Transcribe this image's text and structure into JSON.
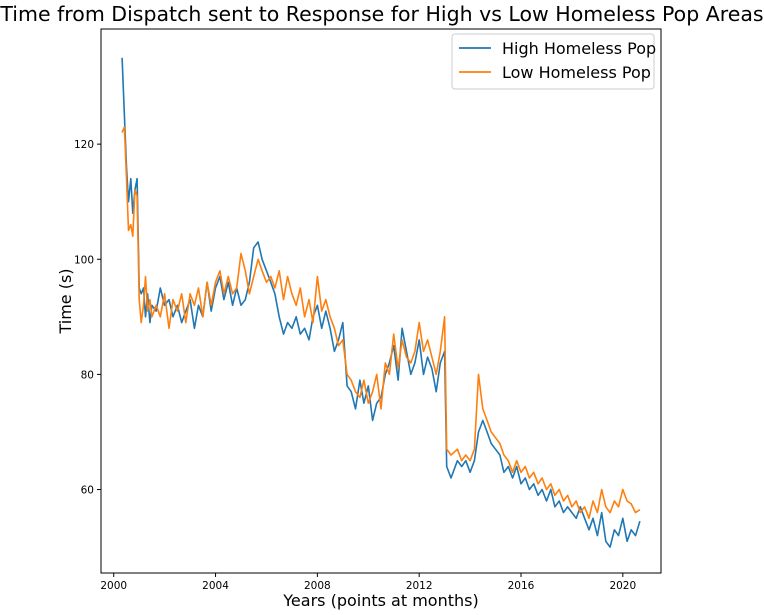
{
  "chart_data": {
    "type": "line",
    "title": "Time from Dispatch sent to Response for High vs Low Homeless Pop Areas",
    "xlabel": "Years (points at months)",
    "ylabel": "Time (s)",
    "xlim": [
      1999.5,
      2021.5
    ],
    "ylim": [
      45.5,
      140.0
    ],
    "x_ticks": [
      {
        "value": 2000,
        "label": "2000"
      },
      {
        "value": 2004,
        "label": "2004"
      },
      {
        "value": 2008,
        "label": "2008"
      },
      {
        "value": 2012,
        "label": "2012"
      },
      {
        "value": 2016,
        "label": "2016"
      },
      {
        "value": 2020,
        "label": "2020"
      }
    ],
    "y_ticks": [
      {
        "value": 60,
        "label": "60"
      },
      {
        "value": 80,
        "label": "80"
      },
      {
        "value": 100,
        "label": "100"
      },
      {
        "value": 120,
        "label": "120"
      }
    ],
    "grid": false,
    "legend_position": "top-right",
    "series": [
      {
        "name": "High Homeless Pop",
        "color": "#1f77b4",
        "points": [
          [
            2000.33,
            135
          ],
          [
            2000.42,
            125
          ],
          [
            2000.5,
            116
          ],
          [
            2000.58,
            110
          ],
          [
            2000.67,
            114
          ],
          [
            2000.75,
            108
          ],
          [
            2000.83,
            112
          ],
          [
            2000.92,
            114
          ],
          [
            2001.0,
            95
          ],
          [
            2001.08,
            94
          ],
          [
            2001.17,
            95
          ],
          [
            2001.25,
            90
          ],
          [
            2001.33,
            94
          ],
          [
            2001.42,
            89
          ],
          [
            2001.5,
            92
          ],
          [
            2001.67,
            91
          ],
          [
            2001.83,
            95
          ],
          [
            2002.0,
            92
          ],
          [
            2002.17,
            93
          ],
          [
            2002.33,
            90
          ],
          [
            2002.5,
            92
          ],
          [
            2002.67,
            89
          ],
          [
            2002.83,
            91
          ],
          [
            2003.0,
            93
          ],
          [
            2003.17,
            88
          ],
          [
            2003.33,
            92
          ],
          [
            2003.5,
            90
          ],
          [
            2003.67,
            96
          ],
          [
            2003.83,
            91
          ],
          [
            2004.0,
            95
          ],
          [
            2004.17,
            97
          ],
          [
            2004.33,
            93
          ],
          [
            2004.5,
            96
          ],
          [
            2004.67,
            92
          ],
          [
            2004.83,
            95
          ],
          [
            2005.0,
            92
          ],
          [
            2005.17,
            93
          ],
          [
            2005.33,
            96
          ],
          [
            2005.5,
            102
          ],
          [
            2005.67,
            103
          ],
          [
            2005.83,
            100
          ],
          [
            2006.0,
            98
          ],
          [
            2006.17,
            96
          ],
          [
            2006.33,
            94
          ],
          [
            2006.5,
            90
          ],
          [
            2006.67,
            87
          ],
          [
            2006.83,
            89
          ],
          [
            2007.0,
            88
          ],
          [
            2007.17,
            90
          ],
          [
            2007.33,
            87
          ],
          [
            2007.5,
            88
          ],
          [
            2007.67,
            86
          ],
          [
            2007.83,
            90
          ],
          [
            2008.0,
            92
          ],
          [
            2008.17,
            88
          ],
          [
            2008.33,
            91
          ],
          [
            2008.5,
            88
          ],
          [
            2008.67,
            84
          ],
          [
            2008.83,
            86
          ],
          [
            2009.0,
            89
          ],
          [
            2009.17,
            78
          ],
          [
            2009.33,
            77
          ],
          [
            2009.5,
            74
          ],
          [
            2009.67,
            79
          ],
          [
            2009.83,
            75
          ],
          [
            2010.0,
            78
          ],
          [
            2010.17,
            72
          ],
          [
            2010.33,
            75
          ],
          [
            2010.5,
            76
          ],
          [
            2010.67,
            80
          ],
          [
            2010.83,
            82
          ],
          [
            2011.0,
            85
          ],
          [
            2011.17,
            79
          ],
          [
            2011.33,
            88
          ],
          [
            2011.5,
            84
          ],
          [
            2011.67,
            80
          ],
          [
            2011.83,
            82
          ],
          [
            2012.0,
            86
          ],
          [
            2012.17,
            80
          ],
          [
            2012.33,
            83
          ],
          [
            2012.5,
            81
          ],
          [
            2012.67,
            77
          ],
          [
            2012.83,
            82
          ],
          [
            2013.0,
            84
          ],
          [
            2013.08,
            64
          ],
          [
            2013.25,
            62
          ],
          [
            2013.5,
            65
          ],
          [
            2013.67,
            64
          ],
          [
            2013.83,
            65
          ],
          [
            2014.0,
            63
          ],
          [
            2014.17,
            65
          ],
          [
            2014.33,
            70
          ],
          [
            2014.5,
            72
          ],
          [
            2014.67,
            70
          ],
          [
            2014.83,
            68
          ],
          [
            2015.0,
            67
          ],
          [
            2015.17,
            66
          ],
          [
            2015.33,
            63
          ],
          [
            2015.5,
            64
          ],
          [
            2015.67,
            62
          ],
          [
            2015.83,
            64
          ],
          [
            2016.0,
            61
          ],
          [
            2016.17,
            62
          ],
          [
            2016.33,
            60
          ],
          [
            2016.5,
            61
          ],
          [
            2016.67,
            59
          ],
          [
            2016.83,
            60
          ],
          [
            2017.0,
            58
          ],
          [
            2017.17,
            60
          ],
          [
            2017.33,
            57
          ],
          [
            2017.5,
            58
          ],
          [
            2017.67,
            56
          ],
          [
            2017.83,
            57
          ],
          [
            2018.0,
            56
          ],
          [
            2018.17,
            55
          ],
          [
            2018.33,
            57
          ],
          [
            2018.5,
            55
          ],
          [
            2018.67,
            53
          ],
          [
            2018.83,
            55
          ],
          [
            2019.0,
            52
          ],
          [
            2019.17,
            56
          ],
          [
            2019.33,
            51
          ],
          [
            2019.5,
            50
          ],
          [
            2019.67,
            53
          ],
          [
            2019.83,
            52
          ],
          [
            2020.0,
            55
          ],
          [
            2020.17,
            51
          ],
          [
            2020.33,
            53
          ],
          [
            2020.5,
            52
          ],
          [
            2020.67,
            54.5
          ]
        ]
      },
      {
        "name": "Low Homeless Pop",
        "color": "#ff7f0e",
        "points": [
          [
            2000.33,
            122
          ],
          [
            2000.42,
            123
          ],
          [
            2000.5,
            114
          ],
          [
            2000.58,
            105
          ],
          [
            2000.67,
            106
          ],
          [
            2000.75,
            104
          ],
          [
            2000.83,
            112
          ],
          [
            2000.92,
            111
          ],
          [
            2001.0,
            93
          ],
          [
            2001.08,
            89
          ],
          [
            2001.17,
            92
          ],
          [
            2001.25,
            97
          ],
          [
            2001.33,
            91
          ],
          [
            2001.42,
            93
          ],
          [
            2001.5,
            90
          ],
          [
            2001.67,
            92
          ],
          [
            2001.83,
            90
          ],
          [
            2002.0,
            94
          ],
          [
            2002.17,
            88
          ],
          [
            2002.33,
            93
          ],
          [
            2002.5,
            91
          ],
          [
            2002.67,
            94
          ],
          [
            2002.83,
            89
          ],
          [
            2003.0,
            94
          ],
          [
            2003.17,
            92
          ],
          [
            2003.33,
            95
          ],
          [
            2003.5,
            90
          ],
          [
            2003.67,
            96
          ],
          [
            2003.83,
            92
          ],
          [
            2004.0,
            96
          ],
          [
            2004.17,
            98
          ],
          [
            2004.33,
            94
          ],
          [
            2004.5,
            97
          ],
          [
            2004.67,
            94
          ],
          [
            2004.83,
            95
          ],
          [
            2005.0,
            101
          ],
          [
            2005.17,
            98
          ],
          [
            2005.33,
            94
          ],
          [
            2005.5,
            97
          ],
          [
            2005.67,
            100
          ],
          [
            2005.83,
            98
          ],
          [
            2006.0,
            96
          ],
          [
            2006.17,
            97
          ],
          [
            2006.33,
            95
          ],
          [
            2006.5,
            98
          ],
          [
            2006.67,
            93
          ],
          [
            2006.83,
            97
          ],
          [
            2007.0,
            94
          ],
          [
            2007.17,
            92
          ],
          [
            2007.33,
            95
          ],
          [
            2007.5,
            90
          ],
          [
            2007.67,
            93
          ],
          [
            2007.83,
            89
          ],
          [
            2008.0,
            97
          ],
          [
            2008.17,
            91
          ],
          [
            2008.33,
            93
          ],
          [
            2008.5,
            90
          ],
          [
            2008.67,
            88
          ],
          [
            2008.83,
            85
          ],
          [
            2009.0,
            86
          ],
          [
            2009.17,
            80
          ],
          [
            2009.33,
            79
          ],
          [
            2009.5,
            77
          ],
          [
            2009.67,
            76
          ],
          [
            2009.83,
            79
          ],
          [
            2010.0,
            75
          ],
          [
            2010.17,
            77
          ],
          [
            2010.33,
            80
          ],
          [
            2010.5,
            74
          ],
          [
            2010.67,
            82
          ],
          [
            2010.83,
            80
          ],
          [
            2011.0,
            87
          ],
          [
            2011.17,
            81
          ],
          [
            2011.33,
            86
          ],
          [
            2011.5,
            83
          ],
          [
            2011.67,
            82
          ],
          [
            2011.83,
            84
          ],
          [
            2012.0,
            89
          ],
          [
            2012.17,
            84
          ],
          [
            2012.33,
            86
          ],
          [
            2012.5,
            83
          ],
          [
            2012.67,
            80
          ],
          [
            2012.83,
            84
          ],
          [
            2013.0,
            90
          ],
          [
            2013.08,
            67
          ],
          [
            2013.25,
            66
          ],
          [
            2013.5,
            67
          ],
          [
            2013.67,
            65
          ],
          [
            2013.83,
            66
          ],
          [
            2014.0,
            65
          ],
          [
            2014.17,
            67
          ],
          [
            2014.33,
            80
          ],
          [
            2014.5,
            74
          ],
          [
            2014.67,
            72
          ],
          [
            2014.83,
            70
          ],
          [
            2015.0,
            69
          ],
          [
            2015.17,
            68
          ],
          [
            2015.33,
            66
          ],
          [
            2015.5,
            65
          ],
          [
            2015.67,
            63
          ],
          [
            2015.83,
            65
          ],
          [
            2016.0,
            63
          ],
          [
            2016.17,
            64
          ],
          [
            2016.33,
            62
          ],
          [
            2016.5,
            63
          ],
          [
            2016.67,
            61
          ],
          [
            2016.83,
            62
          ],
          [
            2017.0,
            60
          ],
          [
            2017.17,
            61
          ],
          [
            2017.33,
            59
          ],
          [
            2017.5,
            60
          ],
          [
            2017.67,
            58
          ],
          [
            2017.83,
            59
          ],
          [
            2018.0,
            57
          ],
          [
            2018.17,
            58
          ],
          [
            2018.33,
            56
          ],
          [
            2018.5,
            57
          ],
          [
            2018.67,
            55
          ],
          [
            2018.83,
            58
          ],
          [
            2019.0,
            56
          ],
          [
            2019.17,
            60
          ],
          [
            2019.33,
            57
          ],
          [
            2019.5,
            56
          ],
          [
            2019.67,
            58
          ],
          [
            2019.83,
            57
          ],
          [
            2020.0,
            60
          ],
          [
            2020.17,
            58
          ],
          [
            2020.33,
            57.5
          ],
          [
            2020.5,
            56
          ],
          [
            2020.67,
            56.5
          ]
        ]
      }
    ]
  }
}
